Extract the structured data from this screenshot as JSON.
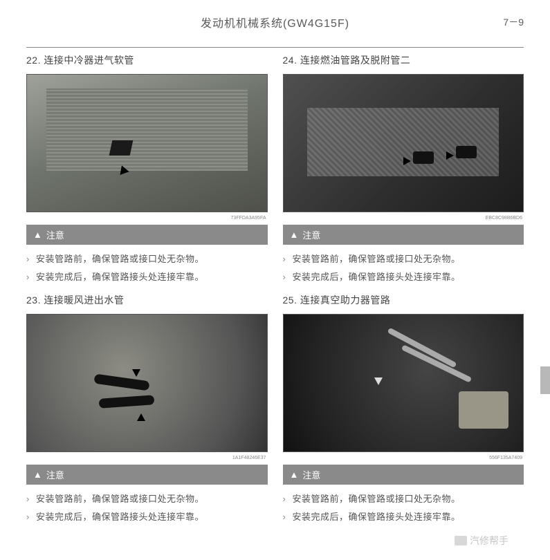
{
  "header": {
    "title": "发动机机械系统(GW4G15F)",
    "page_number": "7－9"
  },
  "left": {
    "step_a": {
      "num": "22.",
      "title": "连接中冷器进气软管",
      "photo_code": "73FFDA3A95FA"
    },
    "notice_a": {
      "label": "注意",
      "items": [
        "安装管路前，确保管路或接口处无杂物。",
        "安装完成后，确保管路接头处连接牢靠。"
      ]
    },
    "step_b": {
      "num": "23.",
      "title": "连接暖风进出水管",
      "photo_code": "1A1F48246E37"
    },
    "notice_b": {
      "label": "注意",
      "items": [
        "安装管路前，确保管路或接口处无杂物。",
        "安装完成后，确保管路接头处连接牢靠。"
      ]
    }
  },
  "right": {
    "step_a": {
      "num": "24.",
      "title": "连接燃油管路及脱附管二",
      "photo_code": "EBC8C98B6BD6"
    },
    "notice_a": {
      "label": "注意",
      "items": [
        "安装管路前，确保管路或接口处无杂物。",
        "安装完成后，确保管路接头处连接牢靠。"
      ]
    },
    "step_b": {
      "num": "25.",
      "title": "连接真空助力器管路",
      "photo_code": "556F135A7409"
    },
    "notice_b": {
      "label": "注意",
      "items": [
        "安装管路前，确保管路或接口处无杂物。",
        "安装完成后，确保管路接头处连接牢靠。"
      ]
    }
  },
  "watermark": "汽修帮手",
  "colors": {
    "text": "#595959",
    "notice_bg": "#8a8a8a",
    "notice_fg": "#ffffff",
    "bullet": "#888888"
  }
}
